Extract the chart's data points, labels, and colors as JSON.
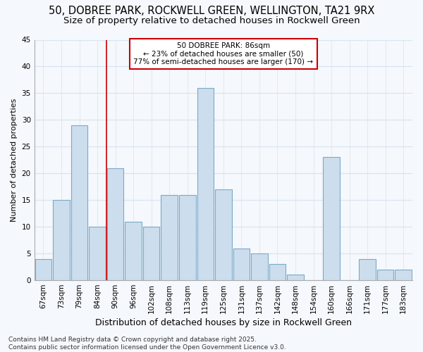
{
  "title1": "50, DOBREE PARK, ROCKWELL GREEN, WELLINGTON, TA21 9RX",
  "title2": "Size of property relative to detached houses in Rockwell Green",
  "xlabel": "Distribution of detached houses by size in Rockwell Green",
  "ylabel": "Number of detached properties",
  "categories": [
    "67sqm",
    "73sqm",
    "79sqm",
    "84sqm",
    "90sqm",
    "96sqm",
    "102sqm",
    "108sqm",
    "113sqm",
    "119sqm",
    "125sqm",
    "131sqm",
    "137sqm",
    "142sqm",
    "148sqm",
    "154sqm",
    "160sqm",
    "166sqm",
    "171sqm",
    "177sqm",
    "183sqm"
  ],
  "values": [
    4,
    15,
    29,
    10,
    21,
    11,
    10,
    16,
    16,
    36,
    17,
    6,
    5,
    3,
    1,
    0,
    23,
    0,
    4,
    2,
    2
  ],
  "bar_color": "#ccdded",
  "bar_edge_color": "#7aaac8",
  "bar_linewidth": 0.8,
  "red_line_x": 3.5,
  "marker_color": "#cc0000",
  "annotation_title": "50 DOBREE PARK: 86sqm",
  "annotation_line1": "← 23% of detached houses are smaller (50)",
  "annotation_line2": "77% of semi-detached houses are larger (170) →",
  "annotation_box_color": "#cc0000",
  "ylim": [
    0,
    45
  ],
  "yticks": [
    0,
    5,
    10,
    15,
    20,
    25,
    30,
    35,
    40,
    45
  ],
  "background_color": "#f5f8fc",
  "grid_color": "#d8e4f0",
  "footer1": "Contains HM Land Registry data © Crown copyright and database right 2025.",
  "footer2": "Contains public sector information licensed under the Open Government Licence v3.0.",
  "title1_fontsize": 10.5,
  "title2_fontsize": 9.5,
  "xlabel_fontsize": 9,
  "ylabel_fontsize": 8,
  "tick_fontsize": 7.5,
  "footer_fontsize": 6.5
}
